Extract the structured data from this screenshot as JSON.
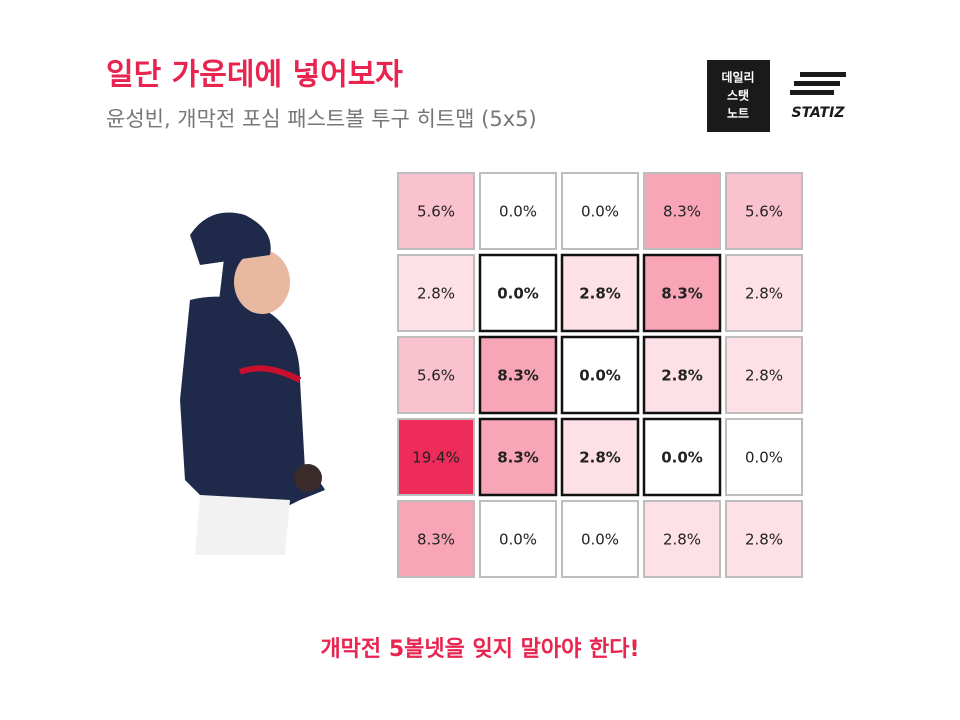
{
  "chart_data": {
    "type": "heatmap",
    "title": "일단 가운데에 넣어보자",
    "subtitle": "윤성빈, 개막전 포심 패스트볼 투구 히트맵 (5x5)",
    "footer": "개막전 5볼넷을 잊지 말아야 한다!",
    "brand": {
      "box": [
        "데일리",
        "스탯",
        "노트"
      ],
      "logo": "STATIZ"
    },
    "values": [
      [
        5.6,
        0.0,
        0.0,
        8.3,
        5.6
      ],
      [
        2.8,
        0.0,
        2.8,
        8.3,
        2.8
      ],
      [
        5.6,
        8.3,
        0.0,
        2.8,
        2.8
      ],
      [
        19.4,
        8.3,
        2.8,
        0.0,
        0.0
      ],
      [
        8.3,
        0.0,
        0.0,
        2.8,
        2.8
      ]
    ],
    "value_labels": [
      [
        "5.6%",
        "0.0%",
        "0.0%",
        "8.3%",
        "5.6%"
      ],
      [
        "2.8%",
        "0.0%",
        "2.8%",
        "8.3%",
        "2.8%"
      ],
      [
        "5.6%",
        "8.3%",
        "0.0%",
        "2.8%",
        "2.8%"
      ],
      [
        "19.4%",
        "8.3%",
        "2.8%",
        "0.0%",
        "0.0%"
      ],
      [
        "8.3%",
        "0.0%",
        "0.0%",
        "2.8%",
        "2.8%"
      ]
    ],
    "color": "#ee2c5a",
    "strike_zone": {
      "rows": [
        1,
        3
      ],
      "cols": [
        1,
        3
      ]
    }
  }
}
